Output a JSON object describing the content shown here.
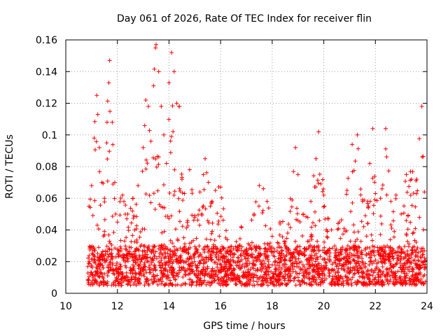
{
  "chart_data": {
    "type": "scatter",
    "title": "Day 061 of 2026, Rate Of TEC Index for receiver flin",
    "xlabel": "GPS time / hours",
    "ylabel": "ROTI / TECUs",
    "xlim": [
      10,
      24
    ],
    "ylim": [
      0,
      0.16
    ],
    "xticks": [
      10,
      12,
      14,
      16,
      18,
      20,
      22,
      24
    ],
    "xtick_labels": [
      "10",
      "12",
      "14",
      "16",
      "18",
      "20",
      "22",
      "24"
    ],
    "yticks": [
      0,
      0.02,
      0.04,
      0.06,
      0.08,
      0.1,
      0.12,
      0.14,
      0.16
    ],
    "ytick_labels": [
      "0",
      "0.02",
      "0.04",
      "0.06",
      "0.08",
      "0.1",
      "0.12",
      "0.14",
      "0.16"
    ],
    "grid": true,
    "marker": "plus",
    "color": "#ff0000",
    "series_highlights": {
      "x": [
        10.9,
        11.0,
        11.1,
        11.2,
        11.3,
        11.4,
        11.5,
        11.6,
        11.7,
        11.8,
        11.9,
        12.0,
        12.2,
        12.4,
        12.6,
        12.8,
        13.0,
        13.1,
        13.2,
        13.3,
        13.4,
        13.5,
        13.6,
        13.7,
        13.8,
        13.9,
        14.0,
        14.1,
        14.2,
        14.3,
        14.4,
        14.5,
        14.6,
        14.8,
        15.0,
        15.2,
        15.4,
        15.6,
        15.8,
        16.0,
        16.2,
        16.5,
        16.8,
        17.0,
        17.3,
        17.5,
        17.8,
        18.0,
        18.3,
        18.6,
        18.9,
        19.0,
        19.2,
        19.5,
        19.7,
        19.8,
        20.0,
        20.3,
        20.6,
        20.9,
        21.1,
        21.3,
        21.5,
        21.7,
        21.9,
        22.0,
        22.2,
        22.4,
        22.6,
        22.8,
        23.0,
        23.2,
        23.4,
        23.6,
        23.8,
        23.9
      ],
      "y": [
        0.055,
        0.068,
        0.098,
        0.125,
        0.092,
        0.07,
        0.06,
        0.108,
        0.147,
        0.108,
        0.07,
        0.045,
        0.062,
        0.05,
        0.06,
        0.068,
        0.092,
        0.122,
        0.118,
        0.096,
        0.131,
        0.157,
        0.14,
        0.118,
        0.1,
        0.082,
        0.133,
        0.152,
        0.14,
        0.12,
        0.118,
        0.072,
        0.063,
        0.078,
        0.048,
        0.064,
        0.085,
        0.055,
        0.065,
        0.067,
        0.035,
        0.028,
        0.042,
        0.025,
        0.05,
        0.068,
        0.058,
        0.036,
        0.045,
        0.038,
        0.092,
        0.075,
        0.05,
        0.058,
        0.085,
        0.102,
        0.062,
        0.04,
        0.045,
        0.065,
        0.094,
        0.1,
        0.058,
        0.058,
        0.104,
        0.063,
        0.06,
        0.104,
        0.058,
        0.062,
        0.05,
        0.075,
        0.072,
        0.072,
        0.118,
        0.064
      ],
      "baseline_band": [
        0.005,
        0.03
      ]
    }
  }
}
